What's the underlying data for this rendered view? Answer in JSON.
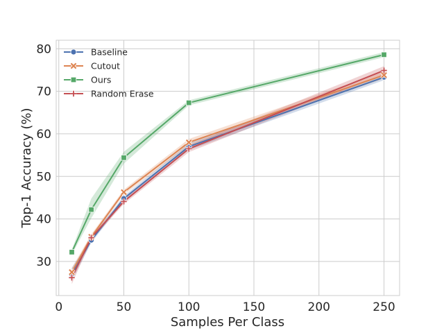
{
  "chart_data": {
    "type": "line",
    "title": "",
    "xlabel": "Samples Per Class",
    "ylabel": "Top-1 Accuracy (%)",
    "xlim": [
      -2,
      262
    ],
    "ylim": [
      22,
      82
    ],
    "xticks": [
      0,
      50,
      100,
      150,
      200,
      250
    ],
    "yticks": [
      30,
      40,
      50,
      60,
      70,
      80
    ],
    "grid": true,
    "legend_position": "top-left",
    "x": [
      10,
      25,
      50,
      100,
      250
    ],
    "series": [
      {
        "name": "Baseline",
        "color": "#4c72b0",
        "marker": "circle",
        "values": [
          27.0,
          35.0,
          44.8,
          57.0,
          73.3
        ],
        "band_low": [
          25.5,
          34.4,
          44.2,
          56.2,
          72.6
        ],
        "band_high": [
          28.5,
          35.6,
          45.4,
          57.8,
          74.0
        ]
      },
      {
        "name": "Cutout",
        "color": "#dd8452",
        "marker": "x",
        "values": [
          27.5,
          35.8,
          46.3,
          58.0,
          73.8
        ],
        "band_low": [
          26.5,
          35.2,
          45.7,
          57.2,
          73.0
        ],
        "band_high": [
          28.5,
          36.4,
          46.9,
          58.8,
          74.6
        ]
      },
      {
        "name": "Ours",
        "color": "#55a868",
        "marker": "square",
        "values": [
          32.2,
          42.2,
          54.4,
          67.3,
          78.6
        ],
        "band_low": [
          31.6,
          40.2,
          53.0,
          66.7,
          78.0
        ],
        "band_high": [
          32.8,
          44.8,
          55.8,
          67.9,
          79.2
        ]
      },
      {
        "name": "Random Erase",
        "color": "#c44e52",
        "marker": "plus",
        "values": [
          26.2,
          35.6,
          44.1,
          56.5,
          74.9
        ],
        "band_low": [
          24.7,
          35.0,
          43.5,
          55.7,
          73.9
        ],
        "band_high": [
          27.7,
          36.2,
          44.7,
          57.3,
          75.9
        ]
      }
    ]
  }
}
